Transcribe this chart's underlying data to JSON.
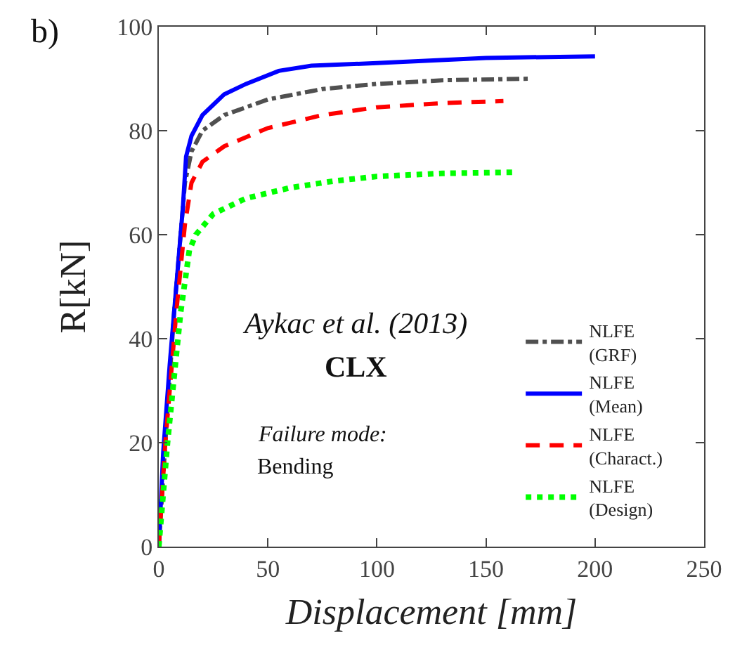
{
  "chart_data": {
    "type": "line",
    "xlabel": "Displacement [mm]",
    "ylabel": "R[kN]",
    "xlim": [
      0,
      250
    ],
    "xticks": [
      0,
      50,
      100,
      150,
      200,
      250
    ],
    "ylim": [
      0,
      100
    ],
    "yticks": [
      0,
      20,
      40,
      60,
      80,
      100
    ],
    "grid": false,
    "legend": "bottom right",
    "marker": "none",
    "annotations": [
      "b)",
      "Aykac et al. (2013)",
      "CLX",
      "Failure mode:",
      "Bending"
    ],
    "series": [
      {
        "name": "NLFE\n(GRF)",
        "color": "#505050",
        "line_style": "dashdot",
        "x": [
          0,
          3,
          7,
          12,
          15,
          20,
          30,
          50,
          75,
          100,
          130,
          170
        ],
        "values": [
          0,
          20,
          45,
          70,
          76,
          80,
          83,
          86,
          88,
          89,
          89.7,
          90
        ]
      },
      {
        "name": "NLFE\n(Mean)",
        "color": "#0000ff",
        "line_style": "solid",
        "x": [
          0,
          2,
          5,
          8,
          11,
          12.5,
          15,
          20,
          25,
          30,
          40,
          55,
          70,
          100,
          150,
          200
        ],
        "values": [
          0,
          18,
          35,
          50,
          65,
          75,
          79,
          83,
          85,
          87,
          89,
          91.5,
          92.5,
          93,
          94,
          94.3
        ]
      },
      {
        "name": "NLFE\n(Charact.)",
        "color": "#ff0000",
        "line_style": "dashed",
        "x": [
          0,
          3,
          8,
          12,
          15,
          20,
          30,
          50,
          75,
          100,
          130,
          158
        ],
        "values": [
          0,
          20,
          45,
          62,
          70,
          74,
          77,
          80.5,
          83,
          84.5,
          85.3,
          85.7
        ]
      },
      {
        "name": "NLFE\n(Design)",
        "color": "#00ff00",
        "line_style": "dotted",
        "x": [
          0,
          4,
          10,
          14,
          17,
          25,
          40,
          60,
          80,
          100,
          130,
          162
        ],
        "values": [
          0,
          20,
          45,
          57,
          60,
          64,
          67,
          69,
          70.3,
          71.2,
          71.8,
          72
        ]
      }
    ]
  }
}
